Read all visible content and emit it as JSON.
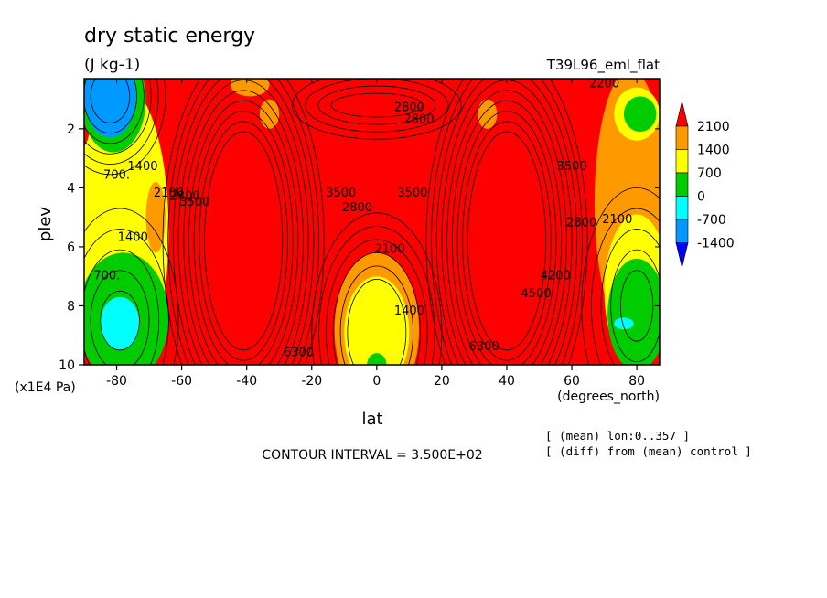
{
  "chart_data": {
    "type": "heatmap",
    "title": "dry static energy",
    "subtitle": "(J kg-1)",
    "run_label": "T39L96_eml_flat",
    "xlabel": "lat",
    "xunits": "(degrees_north)",
    "ylabel": "plev",
    "yunits": "(x1E4 Pa)",
    "xlim": [
      -90,
      87
    ],
    "ylim": [
      10,
      0.3
    ],
    "x_ticks": [
      -80,
      -60,
      -40,
      -20,
      0,
      20,
      40,
      60,
      80
    ],
    "y_ticks": [
      2,
      4,
      6,
      8,
      10
    ],
    "contour_interval_text": "CONTOUR INTERVAL = 3.500E+02",
    "notes": [
      "[ (mean) lon:0..357 ]",
      "[ (diff) from (mean) control ]"
    ],
    "colorbar": {
      "levels": [
        -1400,
        -700,
        0,
        700,
        1400,
        2100
      ],
      "labels": [
        "2100",
        "1400",
        "700",
        "0",
        "-700",
        "-1400"
      ],
      "colors": [
        "#ff0000",
        "#ff9900",
        "#ffff00",
        "#00cc00",
        "#00ffff",
        "#0099ff",
        "#0000ff"
      ]
    },
    "contour_labels": [
      {
        "text": "700.",
        "lat": -80,
        "p": 3.7
      },
      {
        "text": "1400",
        "lat": -72,
        "p": 3.4
      },
      {
        "text": "2100",
        "lat": -64,
        "p": 4.3
      },
      {
        "text": "2800",
        "lat": -59,
        "p": 4.4
      },
      {
        "text": "3500",
        "lat": -56,
        "p": 4.6
      },
      {
        "text": "1400",
        "lat": -75,
        "p": 5.8
      },
      {
        "text": "700.",
        "lat": -83,
        "p": 7.1
      },
      {
        "text": "6300",
        "lat": -24,
        "p": 9.7
      },
      {
        "text": "3500",
        "lat": -11,
        "p": 4.3
      },
      {
        "text": "2800",
        "lat": -6,
        "p": 4.8
      },
      {
        "text": "2100",
        "lat": 4,
        "p": 6.2
      },
      {
        "text": "1400",
        "lat": 10,
        "p": 8.3
      },
      {
        "text": "3500",
        "lat": 11,
        "p": 4.3
      },
      {
        "text": "2800",
        "lat": 13,
        "p": 1.8
      },
      {
        "text": "2800",
        "lat": 10,
        "p": 1.4
      },
      {
        "text": "6300",
        "lat": 33,
        "p": 9.5
      },
      {
        "text": "3500",
        "lat": 60,
        "p": 3.4
      },
      {
        "text": "2800",
        "lat": 63,
        "p": 5.3
      },
      {
        "text": "2100",
        "lat": 74,
        "p": 5.2
      },
      {
        "text": "2200",
        "lat": 70,
        "p": 0.6
      },
      {
        "text": "4200",
        "lat": 55,
        "p": 7.1
      },
      {
        "text": "4500",
        "lat": 49,
        "p": 7.7
      }
    ],
    "regions": [
      {
        "name": "south-polar-upper-cold",
        "level": -1400,
        "lat_range": [
          -90,
          -63
        ],
        "p_range": [
          0.3,
          2.5
        ]
      },
      {
        "name": "south-upper-warm-lobe",
        "level": 2100,
        "lat_range": [
          -52,
          -28
        ],
        "p_range": [
          2.0,
          9.2
        ]
      },
      {
        "name": "equatorial-core-yellow",
        "level": 700,
        "lat_range": [
          -11,
          11
        ],
        "p_range": [
          7.0,
          10
        ]
      },
      {
        "name": "north-upper-warm-lobe",
        "level": 2100,
        "lat_range": [
          28,
          53
        ],
        "p_range": [
          2.0,
          9.2
        ]
      },
      {
        "name": "south-lower-cyan-pool",
        "level": -700,
        "lat_range": [
          -85,
          -65
        ],
        "p_range": [
          7.8,
          9.4
        ]
      },
      {
        "name": "north-lower-green",
        "level": 0,
        "lat_range": [
          58,
          87
        ],
        "p_range": [
          6.5,
          10
        ]
      }
    ]
  }
}
